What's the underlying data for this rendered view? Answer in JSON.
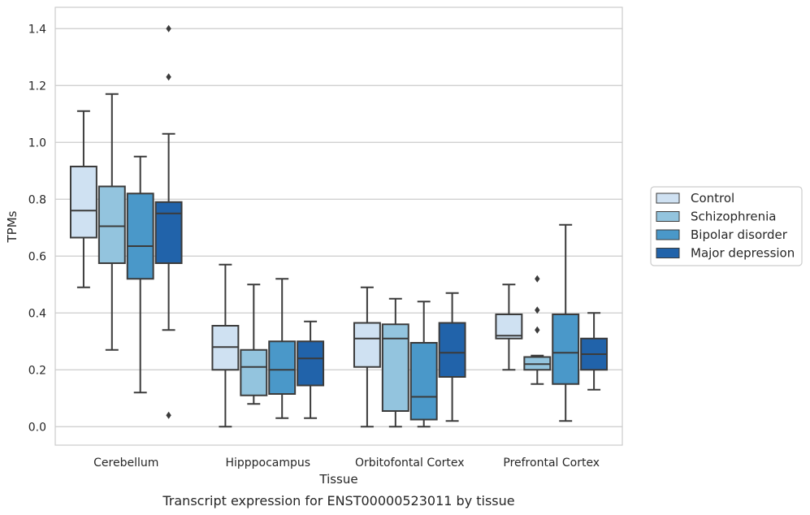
{
  "caption": "Transcript expression for ENST00000523011 by tissue",
  "chart_data": {
    "type": "box",
    "xlabel": "Tissue",
    "ylabel": "TPMs",
    "ylim": [
      -0.065,
      1.475
    ],
    "yticks": [
      "0.0",
      "0.2",
      "0.4",
      "0.6",
      "0.8",
      "1.0",
      "1.2",
      "1.4"
    ],
    "ytick_values": [
      0.0,
      0.2,
      0.4,
      0.6,
      0.8,
      1.0,
      1.2,
      1.4
    ],
    "grid": "horizontal",
    "legend_position": "right",
    "categories": [
      "Cerebellum",
      "Hipppocampus",
      "Orbitofontal Cortex",
      "Prefrontal Cortex"
    ],
    "series": [
      {
        "name": "Control",
        "color": "#cfe1f2",
        "boxes": [
          {
            "whisker_low": 0.49,
            "q1": 0.665,
            "median": 0.76,
            "q3": 0.915,
            "whisker_high": 1.11,
            "outliers": []
          },
          {
            "whisker_low": 0.0,
            "q1": 0.2,
            "median": 0.28,
            "q3": 0.355,
            "whisker_high": 0.57,
            "outliers": []
          },
          {
            "whisker_low": 0.0,
            "q1": 0.21,
            "median": 0.31,
            "q3": 0.365,
            "whisker_high": 0.49,
            "outliers": []
          },
          {
            "whisker_low": 0.2,
            "q1": 0.31,
            "median": 0.32,
            "q3": 0.395,
            "whisker_high": 0.5,
            "outliers": []
          }
        ]
      },
      {
        "name": "Schizophrenia",
        "color": "#93c4de",
        "boxes": [
          {
            "whisker_low": 0.27,
            "q1": 0.575,
            "median": 0.705,
            "q3": 0.845,
            "whisker_high": 1.17,
            "outliers": []
          },
          {
            "whisker_low": 0.08,
            "q1": 0.11,
            "median": 0.21,
            "q3": 0.27,
            "whisker_high": 0.5,
            "outliers": []
          },
          {
            "whisker_low": 0.0,
            "q1": 0.055,
            "median": 0.31,
            "q3": 0.36,
            "whisker_high": 0.45,
            "outliers": []
          },
          {
            "whisker_low": 0.15,
            "q1": 0.2,
            "median": 0.22,
            "q3": 0.245,
            "whisker_high": 0.25,
            "outliers": [
              0.52,
              0.41,
              0.34
            ]
          }
        ]
      },
      {
        "name": "Bipolar disorder",
        "color": "#4a98c9",
        "boxes": [
          {
            "whisker_low": 0.12,
            "q1": 0.52,
            "median": 0.635,
            "q3": 0.82,
            "whisker_high": 0.95,
            "outliers": []
          },
          {
            "whisker_low": 0.03,
            "q1": 0.115,
            "median": 0.2,
            "q3": 0.3,
            "whisker_high": 0.52,
            "outliers": []
          },
          {
            "whisker_low": 0.0,
            "q1": 0.025,
            "median": 0.105,
            "q3": 0.295,
            "whisker_high": 0.44,
            "outliers": []
          },
          {
            "whisker_low": 0.02,
            "q1": 0.15,
            "median": 0.26,
            "q3": 0.395,
            "whisker_high": 0.71,
            "outliers": []
          }
        ]
      },
      {
        "name": "Major depression",
        "color": "#2163aa",
        "boxes": [
          {
            "whisker_low": 0.34,
            "q1": 0.575,
            "median": 0.75,
            "q3": 0.79,
            "whisker_high": 1.03,
            "outliers": [
              1.4,
              1.23,
              0.04
            ]
          },
          {
            "whisker_low": 0.03,
            "q1": 0.145,
            "median": 0.24,
            "q3": 0.3,
            "whisker_high": 0.37,
            "outliers": []
          },
          {
            "whisker_low": 0.02,
            "q1": 0.175,
            "median": 0.26,
            "q3": 0.365,
            "whisker_high": 0.47,
            "outliers": []
          },
          {
            "whisker_low": 0.13,
            "q1": 0.2,
            "median": 0.255,
            "q3": 0.31,
            "whisker_high": 0.4,
            "outliers": []
          }
        ]
      }
    ]
  }
}
